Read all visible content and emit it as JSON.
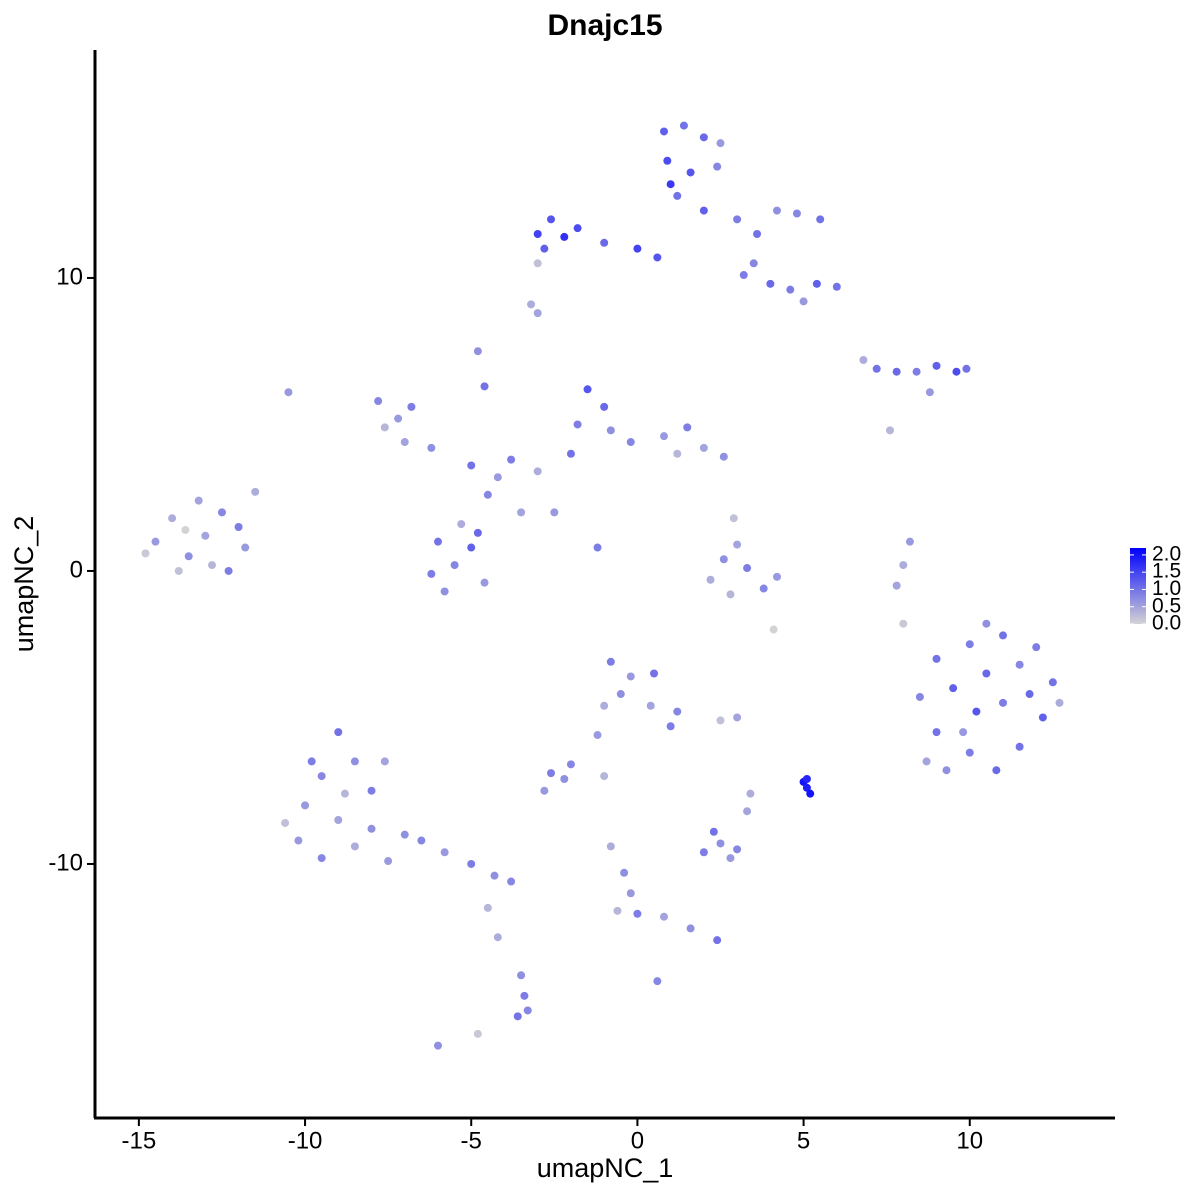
{
  "chart_data": {
    "type": "scatter",
    "title": "Dnajc15",
    "x_label": "umapNC_1",
    "y_label": "umapNC_2",
    "xlim": [
      -16.32,
      14.37
    ],
    "ylim": [
      -18.67,
      17.78
    ],
    "xticks": [
      -15,
      -10,
      -5,
      0,
      5,
      10
    ],
    "yticks": [
      -10,
      0,
      10
    ],
    "color_scale": {
      "colors": [
        "#d3d3d3",
        "#0000ff"
      ],
      "lim": [
        0,
        2.2
      ],
      "ticks": [
        {
          "value": 0,
          "label": "0.0"
        },
        {
          "value": 0.5,
          "label": "0.5"
        },
        {
          "value": 1,
          "label": "1.0"
        },
        {
          "value": 1.5,
          "label": "1.5"
        },
        {
          "value": 2,
          "label": "2.0"
        }
      ]
    },
    "x": [
      -14.5,
      -14.0,
      -13.5,
      -13.0,
      -12.5,
      -12.8,
      -13.8,
      -12.0,
      -11.8,
      -14.8,
      -13.2,
      -12.3,
      -11.5,
      -13.6,
      -7.8,
      -7.2,
      -7.6,
      -6.8,
      -7.0,
      -6.2,
      -5.0,
      -4.2,
      -3.8,
      -3.0,
      -4.5,
      -3.5,
      -4.8,
      -4.6,
      -2.5,
      -1.2,
      -6.0,
      -5.5,
      -5.0,
      -4.6,
      -6.2,
      -5.3,
      -4.8,
      -5.8,
      -1.5,
      -1.0,
      -1.8,
      -0.8,
      -0.2,
      0.8,
      1.5,
      2.0,
      2.6,
      1.2,
      -2.0,
      -3.0,
      -2.6,
      -2.2,
      -2.8,
      -1.8,
      -1.0,
      0.0,
      0.6,
      -3.2,
      -3.0,
      0.8,
      1.4,
      2.0,
      0.9,
      1.6,
      2.4,
      1.2,
      2.0,
      2.5,
      1.0,
      3.0,
      3.6,
      4.2,
      4.8,
      5.5,
      3.5,
      4.0,
      4.6,
      5.4,
      6.0,
      5.0,
      3.2,
      6.8,
      7.2,
      7.8,
      8.4,
      9.0,
      9.6,
      9.9,
      8.8,
      7.6,
      2.6,
      3.0,
      3.3,
      2.2,
      3.8,
      2.8,
      4.2,
      2.9,
      4.1,
      8.2,
      8.0,
      7.8,
      8.0,
      8.5,
      9.0,
      9.5,
      10.0,
      10.5,
      11.0,
      11.5,
      12.0,
      12.5,
      12.2,
      11.5,
      10.8,
      10.0,
      9.3,
      9.0,
      10.2,
      11.0,
      11.8,
      9.8,
      8.7,
      10.5,
      12.7,
      -0.8,
      -0.2,
      0.5,
      -0.5,
      0.4,
      1.2,
      -1.0,
      1.0,
      -1.2,
      -2.0,
      -2.6,
      -2.2,
      -2.8,
      -1.0,
      3.0,
      2.5,
      2.0,
      2.5,
      3.0,
      2.3,
      2.8,
      3.3,
      3.4,
      5.0,
      5.1,
      5.2,
      5.1,
      -0.8,
      -0.4,
      -0.2,
      0.0,
      0.8,
      1.6,
      2.4,
      0.6,
      -0.6,
      -10.0,
      -9.5,
      -9.0,
      -8.5,
      -8.0,
      -9.0,
      -10.2,
      -9.5,
      -8.5,
      -8.0,
      -7.5,
      -8.8,
      -9.8,
      -7.6,
      -10.6,
      -7.0,
      -6.5,
      -5.8,
      -5.0,
      -4.3,
      -3.8,
      -4.5,
      -4.2,
      -3.5,
      -3.4,
      -3.6,
      -3.3,
      -4.8,
      -6.0,
      -10.5,
      -3.0
    ],
    "values": [
      1.0,
      1.8,
      0.5,
      1.2,
      2.0,
      0.2,
      0.0,
      1.5,
      0.8,
      0.6,
      2.4,
      0.0,
      2.7,
      1.4,
      5.8,
      5.2,
      4.9,
      5.6,
      4.4,
      4.2,
      3.6,
      3.2,
      3.8,
      3.4,
      2.6,
      2.0,
      7.5,
      6.3,
      2.0,
      0.8,
      1.0,
      0.2,
      0.8,
      -0.4,
      -0.1,
      1.6,
      1.3,
      -0.7,
      6.2,
      5.6,
      5.0,
      4.8,
      4.4,
      4.6,
      4.9,
      4.2,
      3.9,
      4.0,
      4.0,
      11.5,
      12.0,
      11.4,
      11.0,
      11.7,
      11.2,
      11.0,
      10.7,
      9.1,
      10.5,
      15.0,
      15.2,
      14.8,
      14.0,
      13.6,
      13.8,
      12.8,
      12.3,
      14.6,
      13.2,
      12.0,
      11.5,
      12.3,
      12.2,
      12.0,
      10.5,
      9.8,
      9.6,
      9.8,
      9.7,
      9.2,
      10.1,
      7.2,
      6.9,
      6.8,
      6.8,
      7.0,
      6.8,
      6.9,
      6.1,
      4.8,
      0.4,
      0.9,
      0.1,
      -0.3,
      -0.6,
      -0.8,
      -0.2,
      1.8,
      -2.0,
      1.0,
      0.2,
      -0.5,
      -1.8,
      -4.3,
      -3.0,
      -4.0,
      -2.5,
      -3.5,
      -2.2,
      -3.2,
      -2.6,
      -3.8,
      -5.0,
      -6.0,
      -6.8,
      -6.2,
      -6.8,
      -5.5,
      -4.8,
      -4.5,
      -4.2,
      -5.5,
      -6.5,
      -1.8,
      -4.5,
      -3.1,
      -3.6,
      -3.5,
      -4.2,
      -4.6,
      -4.8,
      -4.6,
      -5.3,
      -5.6,
      -6.6,
      -6.9,
      -7.1,
      -7.5,
      -7.0,
      -5.0,
      -5.1,
      -9.6,
      -9.3,
      -9.5,
      -8.9,
      -9.8,
      -8.2,
      -7.6,
      -7.2,
      -7.4,
      -7.6,
      -7.1,
      -9.4,
      -10.3,
      -11.0,
      -11.7,
      -11.8,
      -12.2,
      -12.6,
      -14.0,
      -11.6,
      -8.0,
      -7.0,
      -5.5,
      -6.5,
      -7.5,
      -8.5,
      -9.2,
      -9.8,
      -9.4,
      -8.8,
      -9.9,
      -7.6,
      -6.5,
      -6.5,
      -8.6,
      -9.0,
      -9.2,
      -9.6,
      -10.0,
      -10.4,
      -10.6,
      -11.5,
      -12.5,
      -13.8,
      -14.5,
      -15.2,
      -15.0,
      -15.8,
      -16.2,
      6.1,
      8.8
    ],
    "color_values": [
      0.6,
      0.4,
      0.7,
      0.5,
      0.8,
      0.3,
      0.2,
      0.9,
      0.6,
      0.1,
      0.5,
      0.9,
      0.4,
      0.0,
      0.8,
      0.6,
      0.3,
      0.9,
      0.5,
      0.7,
      1.0,
      0.6,
      0.9,
      0.4,
      0.8,
      0.5,
      0.7,
      1.0,
      0.6,
      0.9,
      1.0,
      0.8,
      1.2,
      0.6,
      0.9,
      0.4,
      1.1,
      0.7,
      1.3,
      1.1,
      0.9,
      0.7,
      0.8,
      0.6,
      0.9,
      0.5,
      0.7,
      0.3,
      1.0,
      1.5,
      1.3,
      1.7,
      1.2,
      1.4,
      1.1,
      1.5,
      1.3,
      0.4,
      0.2,
      1.2,
      1.0,
      1.1,
      1.4,
      1.3,
      0.8,
      1.0,
      1.2,
      0.6,
      1.6,
      0.9,
      1.0,
      0.7,
      0.8,
      1.0,
      0.8,
      1.1,
      0.9,
      1.2,
      1.0,
      0.6,
      0.9,
      0.4,
      1.0,
      1.1,
      0.9,
      1.2,
      1.4,
      1.0,
      0.6,
      0.3,
      0.7,
      0.5,
      0.9,
      0.4,
      0.8,
      0.3,
      0.6,
      0.2,
      0.0,
      0.6,
      0.4,
      0.5,
      0.1,
      0.8,
      1.0,
      1.2,
      0.9,
      1.1,
      1.0,
      0.8,
      0.9,
      1.0,
      1.2,
      1.0,
      1.1,
      0.9,
      0.7,
      1.0,
      1.3,
      0.9,
      1.1,
      0.6,
      0.5,
      0.7,
      0.4,
      0.9,
      0.6,
      1.0,
      0.7,
      0.5,
      0.8,
      0.4,
      0.9,
      0.6,
      0.8,
      0.9,
      0.7,
      0.6,
      0.3,
      0.5,
      0.2,
      0.9,
      0.7,
      0.8,
      1.0,
      0.6,
      0.5,
      0.4,
      2.0,
      1.9,
      2.0,
      1.8,
      0.4,
      0.7,
      0.6,
      0.9,
      0.5,
      0.7,
      1.0,
      0.8,
      0.3,
      0.6,
      0.8,
      1.0,
      0.7,
      0.9,
      0.5,
      0.6,
      0.8,
      0.4,
      0.7,
      0.6,
      0.3,
      0.9,
      0.5,
      0.2,
      0.7,
      0.8,
      0.6,
      0.9,
      0.7,
      0.8,
      0.3,
      0.4,
      0.7,
      0.9,
      1.0,
      0.8,
      0.1,
      0.7,
      0.6,
      0.5
    ]
  }
}
